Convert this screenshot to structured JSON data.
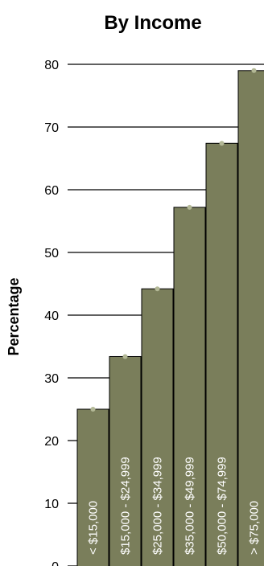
{
  "chart_data": {
    "type": "bar",
    "title": "By Income",
    "xlabel": "",
    "ylabel": "Percentage",
    "ylim": [
      0,
      80
    ],
    "yticks": [
      0,
      10,
      20,
      30,
      40,
      50,
      60,
      70,
      80
    ],
    "grid": true,
    "categories": [
      "< $15,000",
      "$15,000 - $24,999",
      "$25,000 - $34,999",
      "$35,000 - $49,999",
      "$50,000 - $74,999",
      "> $75,000"
    ],
    "values": [
      25,
      33.4,
      44.2,
      57.2,
      67.4,
      79
    ],
    "colors": {
      "bar": "#7a7e5b",
      "marker": "#b3b896",
      "grid": "#000000",
      "bar_text": "#ffffff"
    }
  }
}
